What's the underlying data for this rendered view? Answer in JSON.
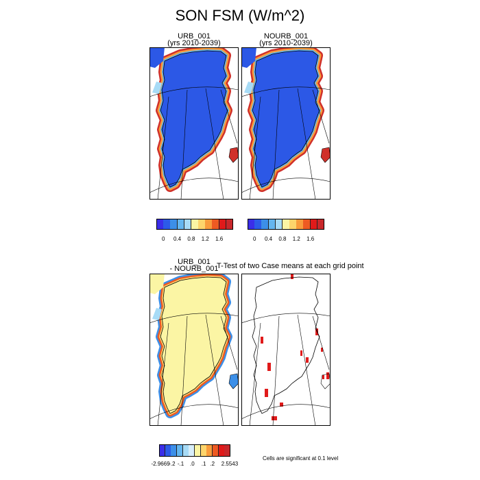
{
  "main_title": "SON FSM (W/m^2)",
  "panels": {
    "urb": {
      "line1": "URB_001",
      "line2": "(yrs 2010-2039)"
    },
    "nourb": {
      "line1": "NOURB_001",
      "line2": "(yrs 2010-2039)"
    },
    "diff": {
      "line1": "URB_001",
      "line2": "- NOURB_001"
    },
    "ttest": {
      "title": "T-Test of two Case means at each grid point"
    }
  },
  "colorbar_top": {
    "colors": [
      "#3b2ee8",
      "#2c5be8",
      "#3c8fe8",
      "#64b6ef",
      "#a7dbf6",
      "#fbf5a4",
      "#fdd56c",
      "#f99c3c",
      "#ee5a22",
      "#e01a1a",
      "#c8282b"
    ],
    "tick_labels": [
      "0",
      "0.4",
      "0.8",
      "1.2",
      "1.6"
    ]
  },
  "colorbar_diff": {
    "colors": [
      "#3b2ee8",
      "#2c5be8",
      "#3c8fe8",
      "#64b6ef",
      "#a7dbf6",
      "#d8eefa",
      "#fbf5a4",
      "#fdd56c",
      "#f99c3c",
      "#ee5a22",
      "#e01a1a",
      "#c8282b"
    ],
    "tick_labels": [
      "-2.9669",
      "-.2",
      "-.1",
      ".0",
      ".1",
      ".2",
      "2.5543"
    ]
  },
  "significance_note": "Cells are significant at 0.1 level"
}
